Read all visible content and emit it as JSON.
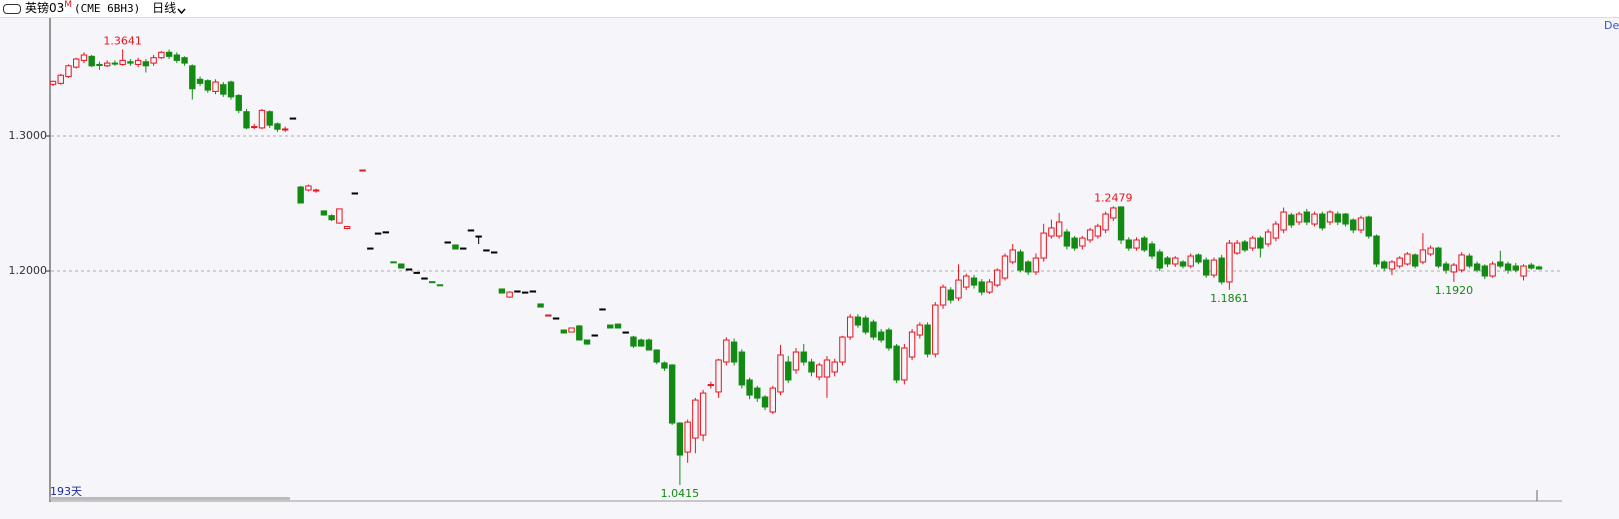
{
  "toolbar": {
    "symbol": "英镑03",
    "suffix": "M",
    "code": "(CME 6BH3)",
    "period": "日线"
  },
  "chart_data": {
    "type": "candlestick",
    "ylim": [
      1.0304,
      1.3874
    ],
    "yticks": [
      {
        "value": 1.3,
        "label": "1.3000"
      },
      {
        "value": 1.2,
        "label": "1.2000"
      }
    ],
    "grid": true,
    "up_color": "#e8141c",
    "down_color": "#138a13",
    "flat_color": "#000000",
    "day_count_label": "193天",
    "corner_label": "De",
    "peak_labels": [
      1.3641,
      1.2479
    ],
    "trough_labels": [
      1.1861,
      {
        "value": 1.192,
        "label": "1.1920"
      },
      1.0415
    ],
    "ohlc": [
      [
        1.3383,
        1.341,
        1.337,
        1.3405
      ],
      [
        1.339,
        1.346,
        1.338,
        1.345
      ],
      [
        1.344,
        1.353,
        1.343,
        1.352
      ],
      [
        1.351,
        1.358,
        1.35,
        1.357
      ],
      [
        1.356,
        1.362,
        1.354,
        1.36
      ],
      [
        1.359,
        1.36,
        1.351,
        1.352
      ],
      [
        1.353,
        1.355,
        1.349,
        1.3525
      ],
      [
        1.352,
        1.356,
        1.351,
        1.354
      ],
      [
        1.354,
        1.356,
        1.352,
        1.3535
      ],
      [
        1.353,
        1.3641,
        1.352,
        1.356
      ],
      [
        1.355,
        1.357,
        1.352,
        1.354
      ],
      [
        1.353,
        1.358,
        1.351,
        1.356
      ],
      [
        1.355,
        1.357,
        1.347,
        1.352
      ],
      [
        1.354,
        1.36,
        1.352,
        1.358
      ],
      [
        1.358,
        1.363,
        1.357,
        1.362
      ],
      [
        1.362,
        1.364,
        1.357,
        1.359
      ],
      [
        1.36,
        1.362,
        1.354,
        1.356
      ],
      [
        1.358,
        1.359,
        1.352,
        1.354
      ],
      [
        1.352,
        1.353,
        1.327,
        1.335
      ],
      [
        1.342,
        1.344,
        1.337,
        1.339
      ],
      [
        1.341,
        1.342,
        1.332,
        1.334
      ],
      [
        1.333,
        1.342,
        1.331,
        1.34
      ],
      [
        1.338,
        1.34,
        1.329,
        1.331
      ],
      [
        1.34,
        1.341,
        1.327,
        1.329
      ],
      [
        1.33,
        1.331,
        1.317,
        1.319
      ],
      [
        1.318,
        1.32,
        1.305,
        1.306
      ],
      [
        1.3065,
        1.309,
        1.305,
        1.307
      ],
      [
        1.306,
        1.32,
        1.305,
        1.319
      ],
      [
        1.318,
        1.319,
        1.306,
        1.308
      ],
      [
        1.309,
        1.31,
        1.303,
        1.305
      ],
      [
        1.305,
        1.307,
        1.303,
        1.3052
      ],
      [
        1.3133,
        1.3133,
        1.3133,
        1.3133
      ],
      [
        1.2622,
        1.263,
        1.25,
        1.2504
      ],
      [
        1.26,
        1.264,
        1.259,
        1.263
      ],
      [
        1.2595,
        1.261,
        1.258,
        1.26
      ],
      [
        1.2445,
        1.245,
        1.241,
        1.2415
      ],
      [
        1.241,
        1.242,
        1.237,
        1.238
      ],
      [
        1.2355,
        1.246,
        1.235,
        1.246
      ],
      [
        1.2315,
        1.233,
        1.231,
        1.233
      ],
      [
        1.2578,
        1.2578,
        1.2578,
        1.2578
      ],
      [
        1.2746,
        1.2748,
        1.2746,
        1.2748
      ],
      [
        1.217,
        1.217,
        1.217,
        1.217
      ],
      [
        1.2281,
        1.2281,
        1.2281,
        1.2281
      ],
      [
        1.229,
        1.229,
        1.229,
        1.229
      ],
      [
        1.2068,
        1.2068,
        1.2066,
        1.2066
      ],
      [
        1.2052,
        1.2052,
        1.2022,
        1.2022
      ],
      [
        1.2015,
        1.2015,
        1.2015,
        1.2015
      ],
      [
        1.199,
        1.199,
        1.199,
        1.199
      ],
      [
        1.1948,
        1.1948,
        1.1948,
        1.1948
      ],
      [
        1.1921,
        1.1921,
        1.1919,
        1.1919
      ],
      [
        1.1898,
        1.1898,
        1.1896,
        1.1896
      ],
      [
        1.2215,
        1.2215,
        1.2215,
        1.2215
      ],
      [
        1.2193,
        1.2193,
        1.2163,
        1.2163
      ],
      [
        1.217,
        1.217,
        1.217,
        1.217
      ],
      [
        1.2304,
        1.2304,
        1.2304,
        1.2304
      ],
      [
        1.2259,
        1.2259,
        1.22,
        1.2259
      ],
      [
        1.2156,
        1.2156,
        1.2156,
        1.2156
      ],
      [
        1.2141,
        1.2141,
        1.2141,
        1.2141
      ],
      [
        1.1867,
        1.1867,
        1.1837,
        1.1837
      ],
      [
        1.1807,
        1.185,
        1.18,
        1.1844
      ],
      [
        1.1852,
        1.1852,
        1.1852,
        1.1852
      ],
      [
        1.1844,
        1.1844,
        1.1844,
        1.1844
      ],
      [
        1.1852,
        1.1852,
        1.1852,
        1.1852
      ],
      [
        1.1756,
        1.1756,
        1.1733,
        1.1733
      ],
      [
        1.1672,
        1.1674,
        1.1672,
        1.1674
      ],
      [
        1.1652,
        1.1652,
        1.1652,
        1.1652
      ],
      [
        1.1563,
        1.1565,
        1.1541,
        1.1541
      ],
      [
        1.1548,
        1.158,
        1.1546,
        1.1578
      ],
      [
        1.1593,
        1.16,
        1.1489,
        1.1489
      ],
      [
        1.1489,
        1.149,
        1.1459,
        1.1459
      ],
      [
        1.1526,
        1.1526,
        1.1526,
        1.1526
      ],
      [
        1.1719,
        1.1719,
        1.1719,
        1.1719
      ],
      [
        1.16,
        1.1602,
        1.1578,
        1.1578
      ],
      [
        1.1607,
        1.1609,
        1.1578,
        1.1578
      ],
      [
        1.1548,
        1.1548,
        1.1548,
        1.1548
      ],
      [
        1.1511,
        1.152,
        1.143,
        1.1444
      ],
      [
        1.1489,
        1.15,
        1.1444,
        1.1444
      ],
      [
        1.1489,
        1.15,
        1.1415,
        1.1415
      ],
      [
        1.1415,
        1.142,
        1.131,
        1.1326
      ],
      [
        1.1319,
        1.133,
        1.126,
        1.1281
      ],
      [
        1.1304,
        1.131,
        1.086,
        1.0874
      ],
      [
        1.0874,
        1.088,
        1.0415,
        1.0637
      ],
      [
        1.0659,
        1.09,
        1.058,
        1.0881
      ],
      [
        1.0763,
        1.106,
        1.065,
        1.1044
      ],
      [
        1.0785,
        1.112,
        1.074,
        1.1096
      ],
      [
        1.1156,
        1.118,
        1.113,
        1.1159
      ],
      [
        1.1104,
        1.135,
        1.106,
        1.1341
      ],
      [
        1.1326,
        1.151,
        1.13,
        1.1489
      ],
      [
        1.1474,
        1.15,
        1.13,
        1.1326
      ],
      [
        1.14,
        1.142,
        1.113,
        1.1156
      ],
      [
        1.1193,
        1.121,
        1.105,
        1.1081
      ],
      [
        1.1133,
        1.115,
        1.103,
        1.1059
      ],
      [
        1.1067,
        1.108,
        1.097,
        1.0993
      ],
      [
        1.0956,
        1.115,
        1.094,
        1.1133
      ],
      [
        1.1104,
        1.1452,
        1.108,
        1.1378
      ],
      [
        1.1326,
        1.137,
        1.117,
        1.1193
      ],
      [
        1.1267,
        1.143,
        1.124,
        1.14
      ],
      [
        1.14,
        1.146,
        1.13,
        1.1326
      ],
      [
        1.1326,
        1.135,
        1.122,
        1.1252
      ],
      [
        1.1215,
        1.132,
        1.119,
        1.1304
      ],
      [
        1.1215,
        1.137,
        1.106,
        1.1341
      ],
      [
        1.1252,
        1.135,
        1.122,
        1.1326
      ],
      [
        1.1326,
        1.152,
        1.13,
        1.1511
      ],
      [
        1.1511,
        1.168,
        1.149,
        1.1659
      ],
      [
        1.1659,
        1.168,
        1.158,
        1.16
      ],
      [
        1.1652,
        1.167,
        1.153,
        1.1548
      ],
      [
        1.1622,
        1.164,
        1.149,
        1.1511
      ],
      [
        1.1548,
        1.157,
        1.147,
        1.1489
      ],
      [
        1.1563,
        1.158,
        1.141,
        1.143
      ],
      [
        1.1444,
        1.146,
        1.117,
        1.1193
      ],
      [
        1.1193,
        1.146,
        1.116,
        1.143
      ],
      [
        1.1363,
        1.157,
        1.134,
        1.1548
      ],
      [
        1.1526,
        1.162,
        1.15,
        1.16
      ],
      [
        1.16,
        1.162,
        1.136,
        1.1385
      ],
      [
        1.1385,
        1.177,
        1.136,
        1.1748
      ],
      [
        1.1748,
        1.19,
        1.172,
        1.1881
      ],
      [
        1.1859,
        1.188,
        1.176,
        1.1785
      ],
      [
        1.18,
        1.205,
        1.178,
        1.1933
      ],
      [
        1.1881,
        1.198,
        1.186,
        1.1963
      ],
      [
        1.1948,
        1.197,
        1.187,
        1.1896
      ],
      [
        1.1919,
        1.194,
        1.182,
        1.1844
      ],
      [
        1.1844,
        1.194,
        1.183,
        1.1919
      ],
      [
        1.1896,
        1.202,
        1.188,
        1.2007
      ],
      [
        1.1948,
        1.213,
        1.193,
        1.2111
      ],
      [
        1.2067,
        1.22,
        1.205,
        1.2156
      ],
      [
        1.2141,
        1.216,
        1.199,
        1.2007
      ],
      [
        1.2067,
        1.208,
        1.197,
        1.1993
      ],
      [
        1.1993,
        1.213,
        1.197,
        1.2096
      ],
      [
        1.2096,
        1.235,
        1.207,
        1.2281
      ],
      [
        1.2259,
        1.238,
        1.224,
        1.2319
      ],
      [
        1.2259,
        1.243,
        1.224,
        1.2363
      ],
      [
        1.2289,
        1.231,
        1.216,
        1.2185
      ],
      [
        1.2244,
        1.226,
        1.215,
        1.217
      ],
      [
        1.2185,
        1.226,
        1.216,
        1.2244
      ],
      [
        1.223,
        1.232,
        1.221,
        1.2304
      ],
      [
        1.2259,
        1.235,
        1.224,
        1.2333
      ],
      [
        1.2304,
        1.244,
        1.228,
        1.2422
      ],
      [
        1.2393,
        1.2479,
        1.237,
        1.2467
      ],
      [
        1.2475,
        1.2476,
        1.22,
        1.223
      ],
      [
        1.223,
        1.225,
        1.215,
        1.217
      ],
      [
        1.217,
        1.225,
        1.215,
        1.223
      ],
      [
        1.2244,
        1.226,
        1.214,
        1.2156
      ],
      [
        1.22,
        1.222,
        1.209,
        1.2111
      ],
      [
        1.2141,
        1.216,
        1.2,
        1.2022
      ],
      [
        1.2096,
        1.211,
        1.203,
        1.2052
      ],
      [
        1.2052,
        1.211,
        1.203,
        1.2096
      ],
      [
        1.2067,
        1.208,
        1.202,
        1.2037
      ],
      [
        1.2037,
        1.213,
        1.202,
        1.2111
      ],
      [
        1.2119,
        1.213,
        1.205,
        1.2067
      ],
      [
        1.2081,
        1.21,
        1.195,
        1.197
      ],
      [
        1.197,
        1.21,
        1.195,
        1.2081
      ],
      [
        1.2096,
        1.212,
        1.19,
        1.1919
      ],
      [
        1.1919,
        1.223,
        1.1861,
        1.2207
      ],
      [
        1.2133,
        1.223,
        1.212,
        1.2207
      ],
      [
        1.2215,
        1.223,
        1.214,
        1.2156
      ],
      [
        1.217,
        1.226,
        1.215,
        1.2244
      ],
      [
        1.2244,
        1.226,
        1.21,
        1.217
      ],
      [
        1.22,
        1.231,
        1.218,
        1.2289
      ],
      [
        1.2244,
        1.237,
        1.222,
        1.2348
      ],
      [
        1.2304,
        1.247,
        1.228,
        1.2437
      ],
      [
        1.2415,
        1.243,
        1.232,
        1.2341
      ],
      [
        1.2363,
        1.244,
        1.234,
        1.2422
      ],
      [
        1.2437,
        1.246,
        1.234,
        1.2363
      ],
      [
        1.2348,
        1.244,
        1.233,
        1.2422
      ],
      [
        1.2422,
        1.244,
        1.23,
        1.2319
      ],
      [
        1.2363,
        1.245,
        1.234,
        1.2437
      ],
      [
        1.2422,
        1.244,
        1.234,
        1.2363
      ],
      [
        1.2422,
        1.243,
        1.233,
        1.2348
      ],
      [
        1.2378,
        1.239,
        1.228,
        1.2304
      ],
      [
        1.2304,
        1.241,
        1.228,
        1.2393
      ],
      [
        1.24,
        1.241,
        1.224,
        1.2259
      ],
      [
        1.2259,
        1.227,
        1.203,
        1.2052
      ],
      [
        1.2067,
        1.208,
        1.2,
        1.2022
      ],
      [
        1.2015,
        1.208,
        1.197,
        1.2067
      ],
      [
        1.2037,
        1.211,
        1.202,
        1.2096
      ],
      [
        1.2052,
        1.214,
        1.204,
        1.2126
      ],
      [
        1.2119,
        1.213,
        1.202,
        1.2037
      ],
      [
        1.2067,
        1.228,
        1.205,
        1.2156
      ],
      [
        1.2126,
        1.219,
        1.211,
        1.217
      ],
      [
        1.217,
        1.218,
        1.202,
        1.2037
      ],
      [
        1.2052,
        1.207,
        1.198,
        1.2007
      ],
      [
        1.1993,
        1.206,
        1.192,
        1.2044
      ],
      [
        1.2007,
        1.214,
        1.199,
        1.2119
      ],
      [
        1.2111,
        1.213,
        1.202,
        1.2037
      ],
      [
        1.2052,
        1.207,
        1.199,
        1.2007
      ],
      [
        1.2037,
        1.205,
        1.194,
        1.1963
      ],
      [
        1.1963,
        1.207,
        1.195,
        1.2052
      ],
      [
        1.2067,
        1.215,
        1.202,
        1.2037
      ],
      [
        1.2052,
        1.207,
        1.198,
        1.2007
      ],
      [
        1.2037,
        1.206,
        1.199,
        1.2007
      ],
      [
        1.1963,
        1.205,
        1.193,
        1.2037
      ],
      [
        1.2044,
        1.206,
        1.201,
        1.2022
      ],
      [
        1.203,
        1.204,
        1.201,
        1.2015
      ]
    ]
  }
}
